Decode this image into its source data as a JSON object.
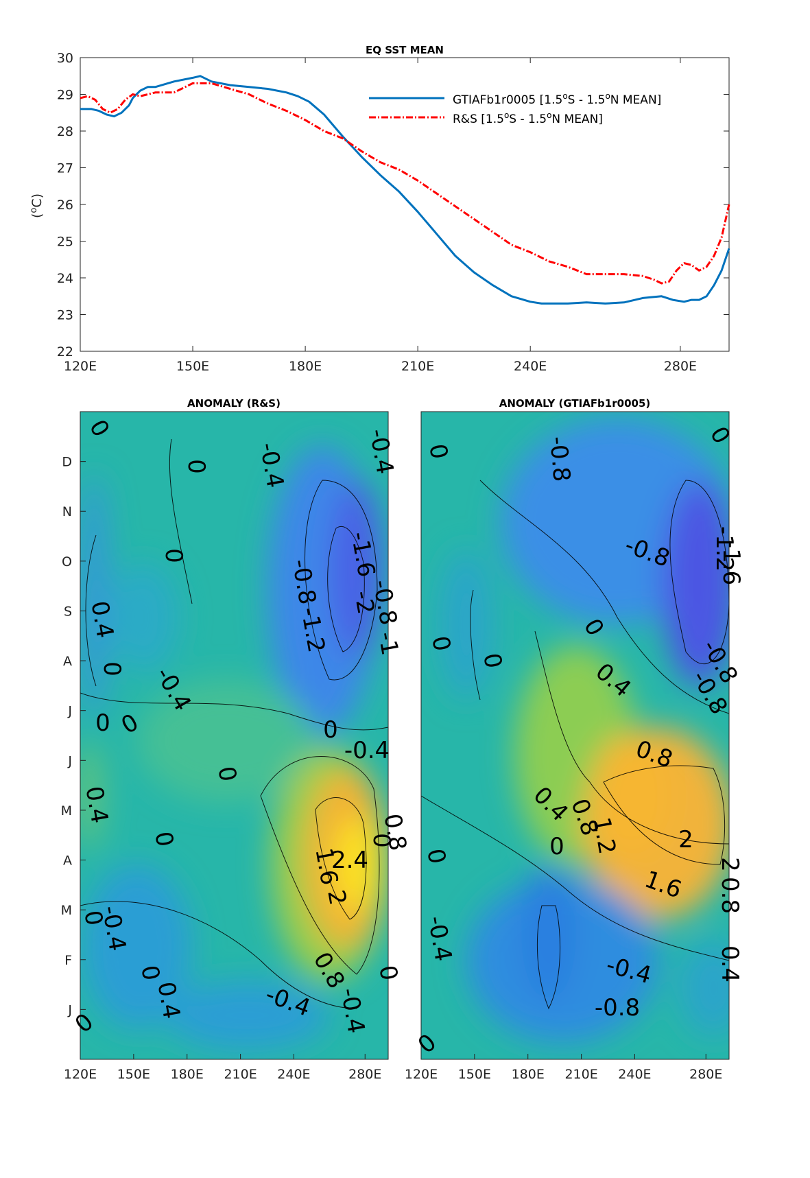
{
  "chart_data": [
    {
      "type": "line",
      "title": "EQ SST MEAN",
      "xlabel": "",
      "ylabel": "(°C)",
      "ylabel_sup": "o",
      "ylabel_parts": [
        "(",
        "o",
        "C)"
      ],
      "xlim": [
        120,
        293
      ],
      "ylim": [
        22,
        30
      ],
      "xticks": [
        120,
        150,
        180,
        210,
        240,
        280
      ],
      "xtick_labels": [
        "120E",
        "150E",
        "180E",
        "210E",
        "240E",
        "280E"
      ],
      "yticks": [
        22,
        23,
        24,
        25,
        26,
        27,
        28,
        29,
        30
      ],
      "ytick_labels": [
        "22",
        "23",
        "24",
        "25",
        "26",
        "27",
        "28",
        "29",
        "30"
      ],
      "legend_position": "top-right",
      "series": [
        {
          "name": "GTIAFb1r0005 [1.5°S - 1.5°N MEAN]",
          "legend_parts": [
            "GTIAFb1r0005 [1.5",
            "o",
            "S - 1.5",
            "o",
            "N MEAN]"
          ],
          "color": "#0072BD",
          "style": "solid",
          "x": [
            120,
            123,
            125,
            127,
            129,
            131,
            133,
            134,
            136,
            138,
            140,
            145,
            150,
            152,
            155,
            160,
            165,
            170,
            175,
            178,
            181,
            185,
            190,
            195,
            200,
            205,
            210,
            215,
            220,
            225,
            230,
            235,
            240,
            243,
            245,
            250,
            255,
            260,
            265,
            270,
            275,
            278,
            281,
            283,
            285,
            287,
            289,
            291,
            293
          ],
          "y": [
            28.6,
            28.6,
            28.55,
            28.45,
            28.4,
            28.5,
            28.7,
            28.9,
            29.1,
            29.2,
            29.2,
            29.35,
            29.45,
            29.5,
            29.35,
            29.25,
            29.2,
            29.15,
            29.05,
            28.95,
            28.8,
            28.45,
            27.85,
            27.3,
            26.8,
            26.35,
            25.8,
            25.2,
            24.6,
            24.15,
            23.8,
            23.5,
            23.35,
            23.3,
            23.3,
            23.3,
            23.33,
            23.3,
            23.33,
            23.45,
            23.5,
            23.4,
            23.35,
            23.4,
            23.4,
            23.5,
            23.8,
            24.2,
            24.8
          ]
        },
        {
          "name": "R&S [1.5°S - 1.5°N MEAN]",
          "legend_parts": [
            "R&S [1.5",
            "o",
            "S - 1.5",
            "o",
            "N MEAN]"
          ],
          "color": "#FF0000",
          "style": "dashdot",
          "x": [
            120,
            122,
            124,
            126,
            128,
            130,
            132,
            134,
            136,
            140,
            145,
            150,
            155,
            160,
            165,
            170,
            175,
            180,
            185,
            190,
            195,
            200,
            205,
            210,
            215,
            220,
            225,
            230,
            235,
            240,
            245,
            250,
            255,
            260,
            265,
            270,
            273,
            275,
            277,
            279,
            281,
            283,
            285,
            287,
            289,
            291,
            293
          ],
          "y": [
            28.9,
            28.95,
            28.85,
            28.6,
            28.5,
            28.6,
            28.85,
            29.0,
            28.95,
            29.05,
            29.05,
            29.3,
            29.3,
            29.15,
            29.0,
            28.75,
            28.55,
            28.3,
            28.0,
            27.8,
            27.45,
            27.15,
            26.95,
            26.65,
            26.3,
            25.95,
            25.6,
            25.25,
            24.9,
            24.7,
            24.45,
            24.3,
            24.1,
            24.1,
            24.1,
            24.05,
            23.95,
            23.85,
            23.9,
            24.2,
            24.4,
            24.35,
            24.2,
            24.3,
            24.6,
            25.1,
            26.0
          ]
        }
      ]
    },
    {
      "type": "heatmap",
      "title": "ANOMALY (R&S)",
      "xlabel": "",
      "ylabel": "",
      "xlim": [
        120,
        293
      ],
      "xtick_labels": [
        "120E",
        "150E",
        "180E",
        "210E",
        "240E",
        "280E"
      ],
      "ytick_labels": [
        "J",
        "F",
        "M",
        "A",
        "M",
        "J",
        "J",
        "A",
        "S",
        "O",
        "N",
        "D"
      ],
      "contour_labels": [
        "0",
        "0",
        "-0.4",
        "-0.4",
        "0",
        "0.4",
        "0",
        "-0.4",
        "0",
        "0",
        "0",
        "-0.4",
        "0",
        "-0.8",
        "-1.2",
        "-1.6",
        "-2",
        "-0.8",
        "-1",
        "0",
        "-0.4",
        "0.4",
        "1.6",
        "2.4",
        "2",
        "0.8",
        "0.8",
        "-0.4",
        "0",
        "0.4",
        "-0.4",
        "0",
        "0",
        "0",
        "0"
      ]
    },
    {
      "type": "heatmap",
      "title": "ANOMALY (GTIAFb1r0005)",
      "xlabel": "",
      "ylabel": "",
      "xlim": [
        120,
        293
      ],
      "xtick_labels": [
        "120E",
        "150E",
        "180E",
        "210E",
        "240E",
        "280E"
      ],
      "ytick_labels": [
        "J",
        "F",
        "M",
        "A",
        "M",
        "J",
        "J",
        "A",
        "S",
        "O",
        "N",
        "D"
      ],
      "contour_labels": [
        "0",
        "-0.8",
        "0",
        "-0.8",
        "-1.2",
        "-1.6",
        "0",
        "0",
        "0",
        "0.4",
        "-0.8",
        "-0.8",
        "0.8",
        "0.4",
        "0",
        "0.8",
        "1.2",
        "2",
        "1.6",
        "2",
        "0.8",
        "0",
        "-0.4",
        "-0.4",
        "-0.8",
        "0.4",
        "0"
      ]
    }
  ]
}
